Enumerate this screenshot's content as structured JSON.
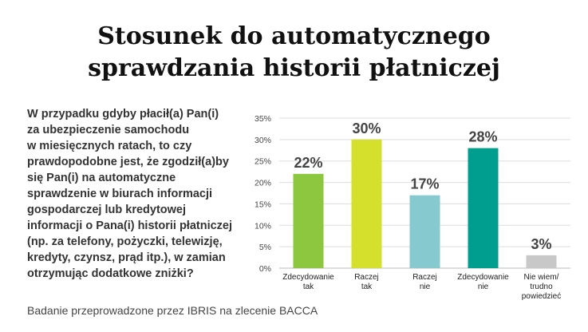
{
  "title_lines": [
    "Stosunek do automatycznego",
    "sprawdzania historii płatniczej"
  ],
  "question": "W przypadku gdyby płacił(a) Pan(i)\nza ubezpieczenie samochodu\nw miesięcznych ratach, to czy\nprawdopodobne jest, że zgodził(a)by\nsię Pan(i) na automatyczne\nsprawdzenie w biurach informacji\ngospodarczej lub kredytowej\ninformacji o Pana(i) historii płatniczej\n(np. za telefony, pożyczki, telewizję,\nkredyty, czynsz, prąd itp.), w zamian\notrzymując dodatkowe zniżki?",
  "footer": "Badanie przeprowadzone przez IBRIS na zlecenie BACCA",
  "chart_data": {
    "type": "bar",
    "categories": [
      [
        "Zdecydowanie",
        "tak"
      ],
      [
        "Raczej",
        "tak"
      ],
      [
        "Raczej",
        "nie"
      ],
      [
        "Zdecydowanie",
        "nie"
      ],
      [
        "Nie wiem/",
        "trudno",
        "powiedzieć"
      ]
    ],
    "values": [
      22,
      30,
      17,
      28,
      3
    ],
    "value_labels": [
      "22%",
      "30%",
      "17%",
      "28%",
      "3%"
    ],
    "colors": [
      "#8dc63f",
      "#d4e02b",
      "#86cad0",
      "#009e8f",
      "#c8c8c8"
    ],
    "ylim": [
      0,
      35
    ],
    "yticks": [
      0,
      5,
      10,
      15,
      20,
      25,
      30,
      35
    ],
    "ytick_labels": [
      "0%",
      "5%",
      "10%",
      "15%",
      "20%",
      "25%",
      "30%",
      "35%"
    ],
    "grid": true,
    "gridline_color": "#dddddd"
  }
}
